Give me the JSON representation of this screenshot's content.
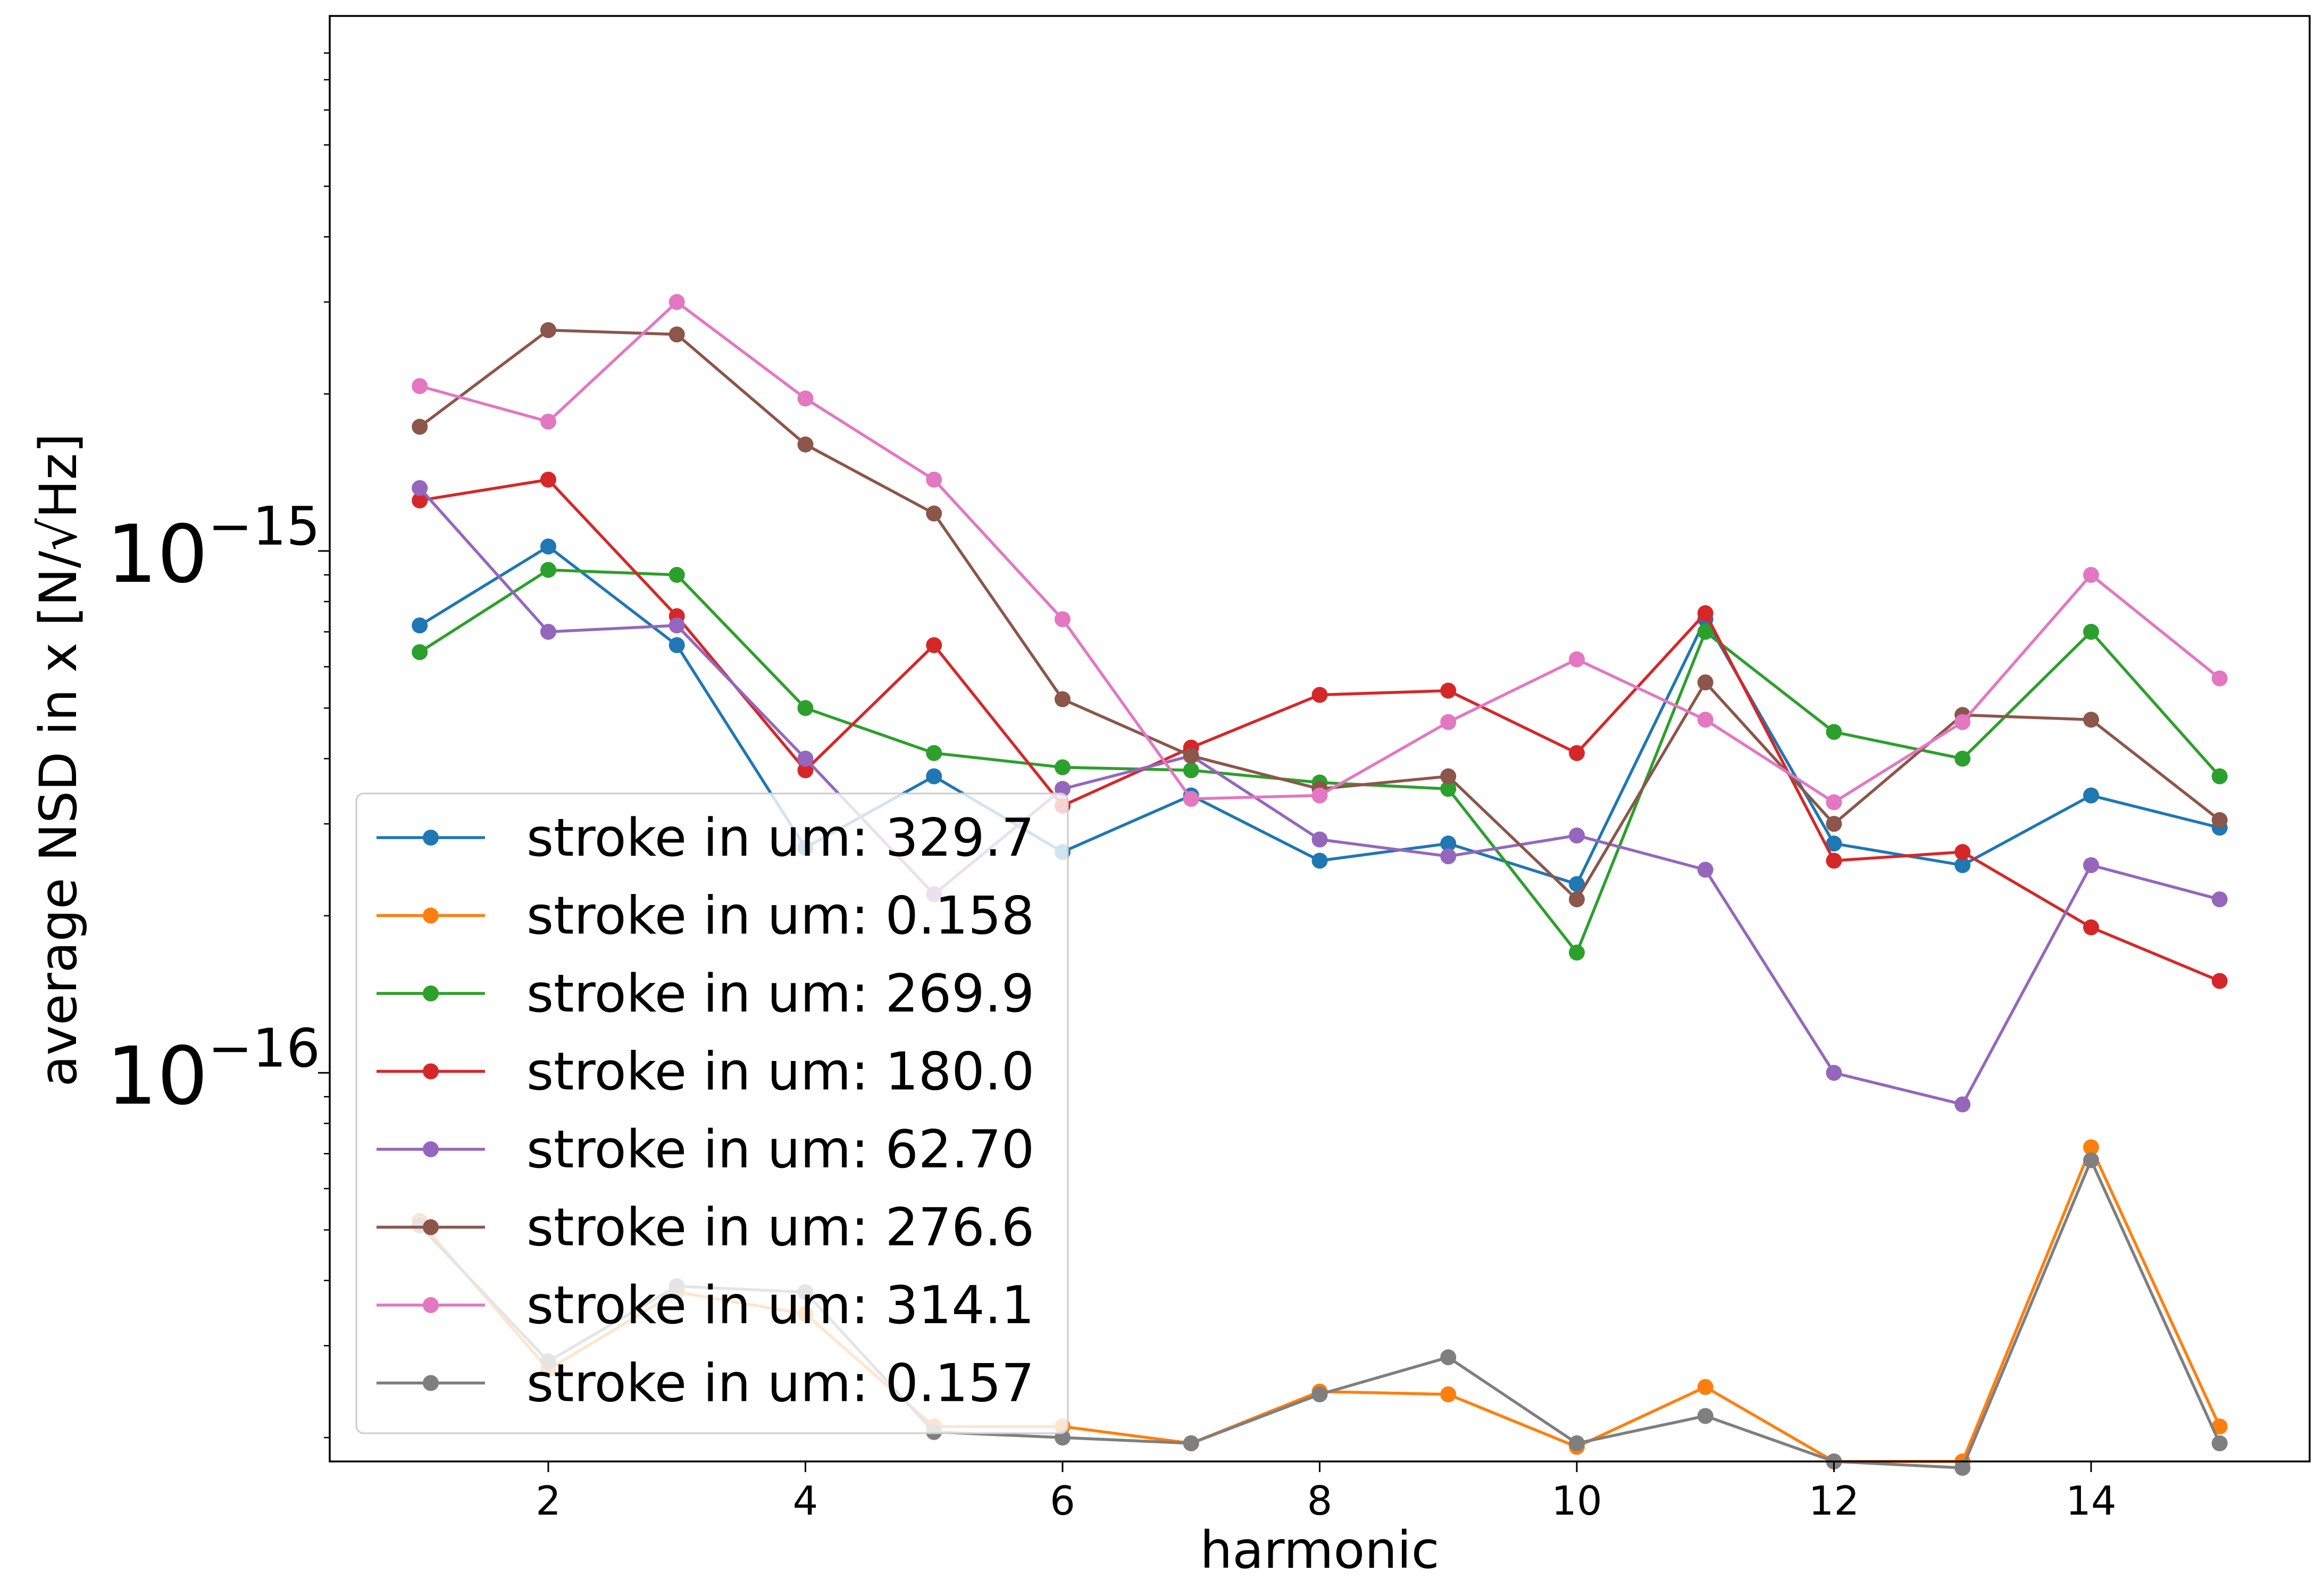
{
  "chart_data": {
    "type": "line",
    "xlabel": "harmonic",
    "ylabel": "average NSD in x [N/√Hz]",
    "y_scale": "log",
    "xlim": [
      0.3,
      15.7
    ],
    "ylim": [
      1.8e-17,
      1.06e-14
    ],
    "x_ticks": [
      2,
      4,
      6,
      8,
      10,
      12,
      14
    ],
    "x_tick_labels": [
      "2",
      "4",
      "6",
      "8",
      "10",
      "12",
      "14"
    ],
    "y_ticks": [
      {
        "value": 1e-15,
        "base": "10",
        "exponent": "−15"
      },
      {
        "value": 1e-16,
        "base": "10",
        "exponent": "−16"
      }
    ],
    "grid": false,
    "legend_position": "lower-left",
    "x": [
      1,
      2,
      3,
      4,
      5,
      6,
      7,
      8,
      9,
      10,
      11,
      12,
      13,
      14,
      15
    ],
    "series": [
      {
        "name": "stroke in um: 329.7",
        "color": "#1f77b4",
        "values": [
          7.2e-16,
          1.02e-15,
          6.6e-16,
          2.7e-16,
          3.7e-16,
          2.65e-16,
          3.4e-16,
          2.55e-16,
          2.75e-16,
          2.3e-16,
          7.4e-16,
          2.75e-16,
          2.5e-16,
          3.4e-16,
          2.95e-16
        ]
      },
      {
        "name": "stroke in um: 0.158",
        "color": "#ff7f0e",
        "values": [
          5.2e-17,
          2.7e-17,
          3.8e-17,
          3.45e-17,
          2.1e-17,
          2.1e-17,
          1.95e-17,
          2.45e-17,
          2.42e-17,
          1.92e-17,
          2.5e-17,
          1.8e-17,
          1.8e-17,
          7.2e-17,
          2.1e-17
        ]
      },
      {
        "name": "stroke in um: 269.9",
        "color": "#2ca02c",
        "values": [
          6.4e-16,
          9.2e-16,
          9e-16,
          5e-16,
          4.1e-16,
          3.85e-16,
          3.8e-16,
          3.6e-16,
          3.5e-16,
          1.7e-16,
          7e-16,
          4.5e-16,
          4e-16,
          7e-16,
          3.7e-16
        ]
      },
      {
        "name": "stroke in um: 180.0",
        "color": "#d62728",
        "values": [
          1.25e-15,
          1.37e-15,
          7.5e-16,
          3.8e-16,
          6.6e-16,
          3.25e-16,
          4.2e-16,
          5.3e-16,
          5.4e-16,
          4.1e-16,
          7.6e-16,
          2.55e-16,
          2.65e-16,
          1.9e-16,
          1.5e-16
        ]
      },
      {
        "name": "stroke in um: 62.70",
        "color": "#9467bd",
        "values": [
          1.32e-15,
          7e-16,
          7.2e-16,
          4e-16,
          2.2e-16,
          3.5e-16,
          4.05e-16,
          2.8e-16,
          2.6e-16,
          2.85e-16,
          2.45e-16,
          1e-16,
          8.7e-17,
          2.5e-16,
          2.15e-16
        ]
      },
      {
        "name": "stroke in um: 276.6",
        "color": "#8c564b",
        "values": [
          1.73e-15,
          2.65e-15,
          2.6e-15,
          1.6e-15,
          1.18e-15,
          5.2e-16,
          4.05e-16,
          3.5e-16,
          3.7e-16,
          2.15e-16,
          5.6e-16,
          3e-16,
          4.85e-16,
          4.75e-16,
          3.05e-16
        ]
      },
      {
        "name": "stroke in um: 314.1",
        "color": "#e377c2",
        "values": [
          2.07e-15,
          1.77e-15,
          3e-15,
          1.96e-15,
          1.37e-15,
          7.4e-16,
          3.35e-16,
          3.4e-16,
          4.7e-16,
          6.2e-16,
          4.75e-16,
          3.3e-16,
          4.7e-16,
          9e-16,
          5.7e-16
        ]
      },
      {
        "name": "stroke in um: 0.157",
        "color": "#7f7f7f",
        "values": [
          5.1e-17,
          2.8e-17,
          3.9e-17,
          3.8e-17,
          2.05e-17,
          2e-17,
          1.95e-17,
          2.42e-17,
          2.85e-17,
          1.95e-17,
          2.2e-17,
          1.8e-17,
          1.75e-17,
          6.8e-17,
          1.95e-17
        ]
      }
    ]
  }
}
